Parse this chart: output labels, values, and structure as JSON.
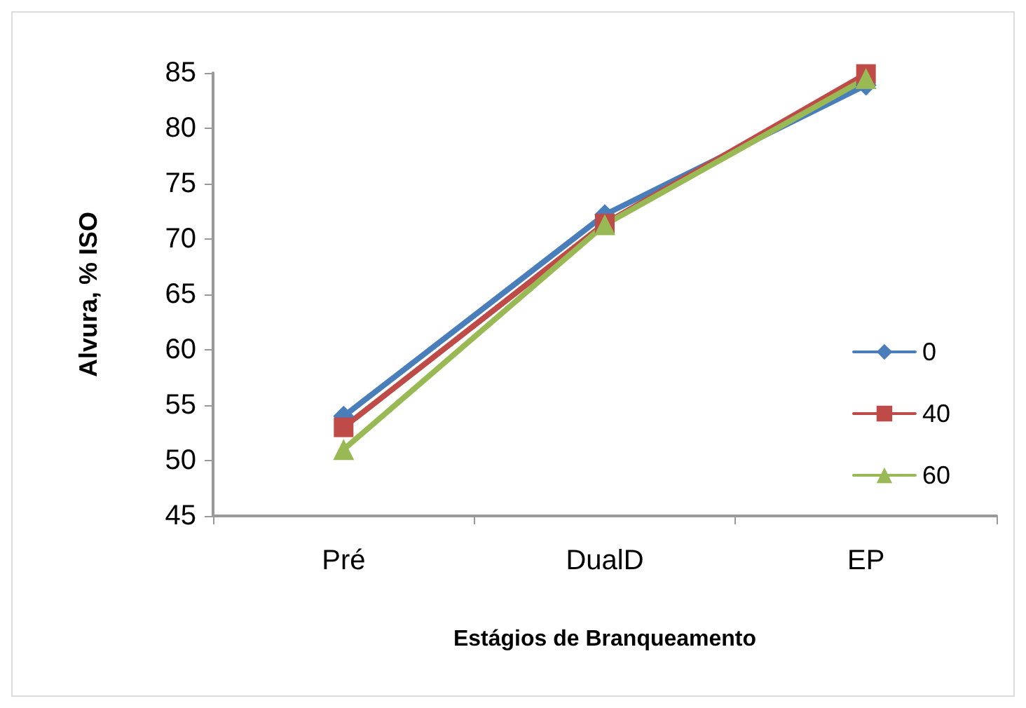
{
  "chart_data": {
    "type": "line",
    "xlabel": "Estágios de Branqueamento",
    "ylabel": "Alvura, % ISO",
    "categories": [
      "Pré",
      "DualD",
      "EP"
    ],
    "series": [
      {
        "name": "0",
        "color": "#4a7ebb",
        "marker": "diamond",
        "values": [
          54,
          72.2,
          83.9
        ]
      },
      {
        "name": "40",
        "color": "#be4b48",
        "marker": "square",
        "values": [
          53,
          71.4,
          84.9
        ]
      },
      {
        "name": "60",
        "color": "#98b954",
        "marker": "triangle",
        "values": [
          51,
          71.3,
          84.5
        ]
      }
    ],
    "ylim": [
      45,
      85
    ],
    "yticks": [
      45,
      50,
      55,
      60,
      65,
      70,
      75,
      80,
      85
    ],
    "grid": false,
    "legend": "right",
    "line_style": "solid"
  }
}
